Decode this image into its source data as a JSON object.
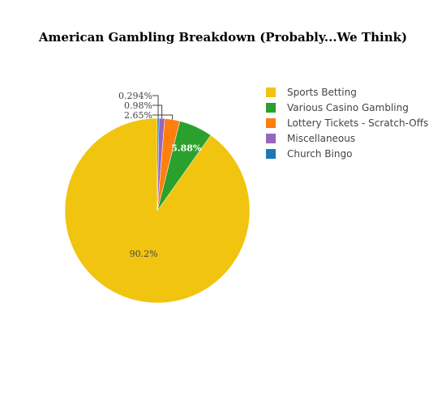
{
  "chart_data": {
    "type": "pie",
    "title": "American Gambling Breakdown (Probably...We Think)",
    "slices": [
      {
        "label": "Sports Betting",
        "value": 90.2,
        "display": "90.2%",
        "color": "#f1c40f",
        "label_pos": "inside"
      },
      {
        "label": "Various Casino Gambling",
        "value": 5.88,
        "display": "5.88%",
        "color": "#2ca02c",
        "label_pos": "inside"
      },
      {
        "label": "Lottery Tickets - Scratch-Offs",
        "value": 2.65,
        "display": "2.65%",
        "color": "#ff7f0e",
        "label_pos": "outside"
      },
      {
        "label": "Miscellaneous",
        "value": 0.98,
        "display": "0.98%",
        "color": "#9467bd",
        "label_pos": "outside"
      },
      {
        "label": "Church Bingo",
        "value": 0.294,
        "display": "0.294%",
        "color": "#1f77b4",
        "label_pos": "outside"
      }
    ],
    "legend_position": "right",
    "direction": "counterclockwise",
    "start_angle": "top"
  }
}
